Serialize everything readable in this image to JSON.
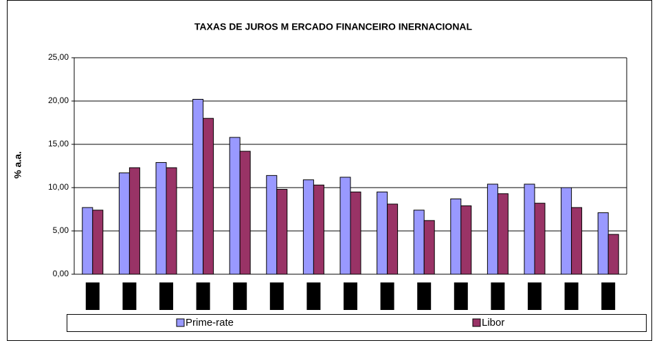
{
  "chart_data": {
    "type": "bar",
    "title": "TAXAS DE JUROS M ERCADO FINANCEIRO INERNACIONAL",
    "y_label": "% a.a.",
    "categories": [
      null,
      null,
      null,
      null,
      null,
      null,
      null,
      null,
      null,
      null,
      null,
      null,
      null,
      null,
      null
    ],
    "series": [
      {
        "name": "Prime-rate",
        "color": "#9999ff",
        "values": [
          7.7,
          11.7,
          12.9,
          20.2,
          15.8,
          11.4,
          10.9,
          11.2,
          9.5,
          7.4,
          8.7,
          10.4,
          10.4,
          10.0,
          7.1
        ]
      },
      {
        "name": "Libor",
        "color": "#993366",
        "values": [
          7.4,
          12.3,
          12.3,
          18.0,
          14.2,
          9.8,
          10.3,
          9.5,
          8.1,
          6.2,
          7.9,
          9.3,
          8.2,
          7.7,
          4.6
        ]
      }
    ],
    "ylim": [
      0,
      25
    ],
    "yticks": [
      {
        "value": 0,
        "label": "0,00"
      },
      {
        "value": 5,
        "label": "5,00"
      },
      {
        "value": 10,
        "label": "10,00"
      },
      {
        "value": 15,
        "label": "15,00"
      },
      {
        "value": 20,
        "label": "20,00"
      },
      {
        "value": 25,
        "label": "25,00"
      }
    ],
    "grid": true,
    "legend": "bottom"
  }
}
